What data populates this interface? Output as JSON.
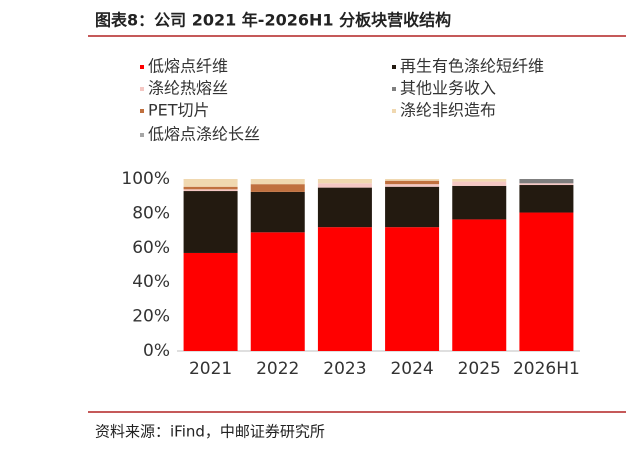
{
  "header": {
    "title": "图表8：公司 2021 年-2026H1 分板块营收结构"
  },
  "chart_data": {
    "type": "stacked_bar",
    "categories": [
      "2021",
      "2022",
      "2023",
      "2024",
      "2025",
      "2026H1"
    ],
    "series": [
      {
        "name": "低熔点纤维",
        "color": "#ff0000",
        "values": [
          57,
          69,
          72,
          72,
          76.5,
          80.5
        ]
      },
      {
        "name": "再生有色涤纶短纤维",
        "color": "#231a10",
        "values": [
          36,
          23.5,
          23,
          23.5,
          19.5,
          16
        ]
      },
      {
        "name": "涤纶热熔丝",
        "color": "#f4c7c3",
        "values": [
          1,
          0,
          2.5,
          1.5,
          2.5,
          1
        ]
      },
      {
        "name": "其他业务收入",
        "color": "#7f7f7f",
        "values": [
          0,
          0,
          0,
          0,
          0,
          2.5
        ]
      },
      {
        "name": "PET切片",
        "color": "#c0703f",
        "values": [
          1.5,
          4.5,
          0,
          2,
          0,
          0
        ]
      },
      {
        "name": "涤纶非织造布",
        "color": "#f0d8b0",
        "values": [
          4.5,
          3,
          2.5,
          1,
          1.5,
          0
        ]
      },
      {
        "name": "低熔点涤纶长丝",
        "color": "#a6a6a6",
        "values": [
          0,
          0,
          0,
          0,
          0,
          0
        ]
      }
    ],
    "ylim": [
      0,
      100
    ],
    "yticks": [
      {
        "value": 0,
        "label": "0%"
      },
      {
        "value": 20,
        "label": "20%"
      },
      {
        "value": 40,
        "label": "40%"
      },
      {
        "value": 60,
        "label": "60%"
      },
      {
        "value": 80,
        "label": "80%"
      },
      {
        "value": 100,
        "label": "100%"
      }
    ]
  },
  "footer": {
    "source": "资料来源：iFind，中邮证券研究所"
  }
}
